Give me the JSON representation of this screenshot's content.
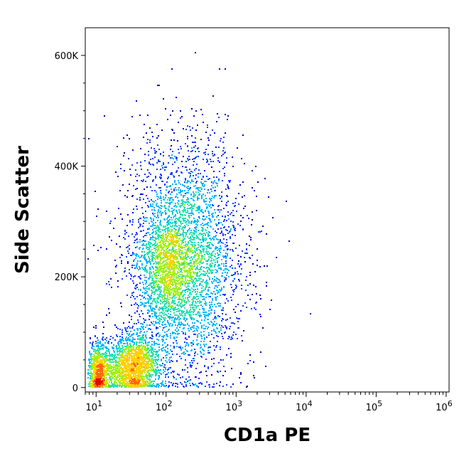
{
  "chart_data": {
    "type": "scatter",
    "style": "density dot plot (flow cytometry)",
    "title": "",
    "xlabel": "CD1a PE",
    "ylabel": "Side Scatter",
    "x_scale": "log",
    "xlim": [
      7,
      1100000
    ],
    "ylim": [
      -8000,
      650000
    ],
    "x_ticks": [
      {
        "value": 10,
        "base": "10",
        "exp": "1"
      },
      {
        "value": 100,
        "base": "10",
        "exp": "2"
      },
      {
        "value": 1000,
        "base": "10",
        "exp": "3"
      },
      {
        "value": 10000,
        "base": "10",
        "exp": "4"
      },
      {
        "value": 100000,
        "base": "10",
        "exp": "5"
      },
      {
        "value": 1000000,
        "base": "10",
        "exp": "6"
      }
    ],
    "y_ticks": [
      {
        "value": 0,
        "label": "0"
      },
      {
        "value": 200000,
        "label": "200K"
      },
      {
        "value": 400000,
        "label": "400K"
      },
      {
        "value": 600000,
        "label": "600K"
      }
    ],
    "density_colors": [
      "#0000cc",
      "#1a3cff",
      "#00b4ff",
      "#29e0b0",
      "#a0ef20",
      "#ffd000",
      "#ff6a00",
      "#e60000"
    ],
    "clusters": [
      {
        "name": "main",
        "x_log_center": 2.25,
        "x_log_sd": 0.42,
        "y_center": 230000,
        "y_sd": 105000,
        "share": 0.62
      },
      {
        "name": "dense core",
        "x_log_center": 2.0,
        "x_log_sd": 0.18,
        "y_center": 215000,
        "y_sd": 50000,
        "share": 0.1
      },
      {
        "name": "low SSC",
        "x_log_center": 1.5,
        "x_log_sd": 0.2,
        "y_center": 40000,
        "y_sd": 28000,
        "share": 0.2
      },
      {
        "name": "low SSC negative",
        "x_log_center": 1.02,
        "x_log_sd": 0.08,
        "y_center": 30000,
        "y_sd": 25000,
        "share": 0.08
      }
    ],
    "grid": false,
    "legend": "none"
  }
}
